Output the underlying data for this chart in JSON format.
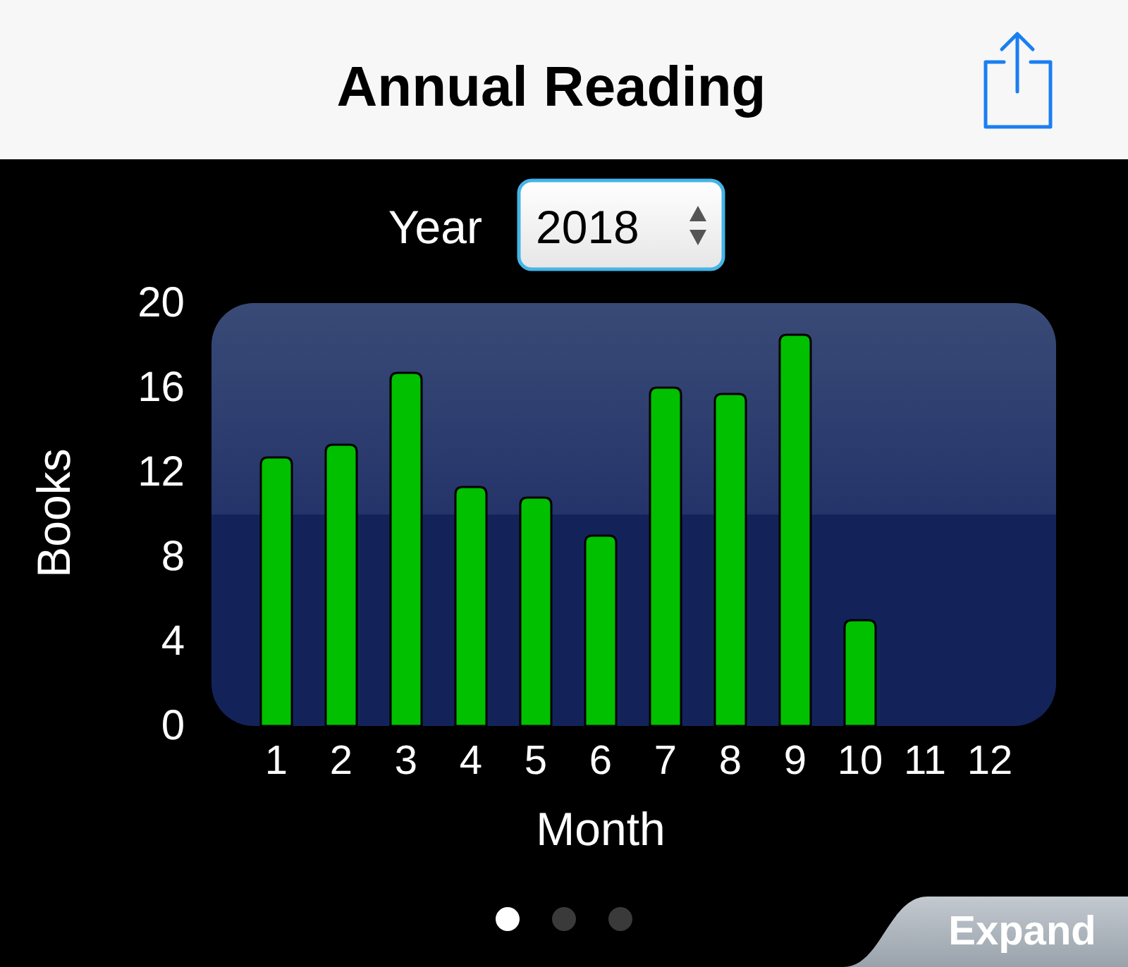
{
  "chart_data": {
    "type": "bar",
    "title": "Annual Reading",
    "xlabel": "Month",
    "ylabel": "Books",
    "categories": [
      "1",
      "2",
      "3",
      "4",
      "5",
      "6",
      "7",
      "8",
      "9",
      "10",
      "11",
      "12"
    ],
    "values": [
      12.7,
      13.3,
      16.7,
      11.3,
      10.8,
      9,
      16,
      15.7,
      18.5,
      5,
      0,
      0
    ],
    "color": "#00c000",
    "ylim": [
      0,
      20
    ],
    "yticks": [
      0,
      4,
      8,
      12,
      16,
      20
    ],
    "annotations": [
      "Year",
      "2018",
      "Expand"
    ]
  }
}
